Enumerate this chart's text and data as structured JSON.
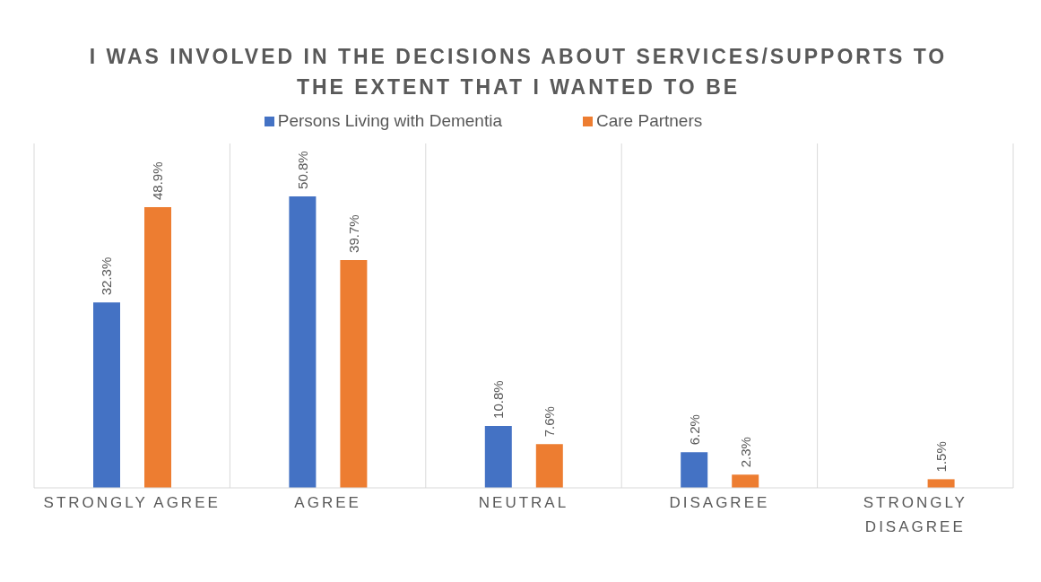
{
  "chart_data": {
    "type": "bar",
    "title": "I WAS INVOLVED IN THE DECISIONS ABOUT SERVICES/SUPPORTS TO THE EXTENT THAT I WANTED TO BE",
    "categories": [
      "STRONGLY AGREE",
      "AGREE",
      "NEUTRAL",
      "DISAGREE",
      "STRONGLY DISAGREE"
    ],
    "series": [
      {
        "name": "Persons Living with Dementia",
        "color": "#4472c4",
        "values": [
          32.3,
          50.8,
          10.8,
          6.2,
          null
        ],
        "value_labels": [
          "32.3%",
          "50.8%",
          "10.8%",
          "6.2%",
          null
        ]
      },
      {
        "name": "Care Partners",
        "color": "#ed7d31",
        "values": [
          48.9,
          39.7,
          7.6,
          2.3,
          1.5
        ],
        "value_labels": [
          "48.9%",
          "39.7%",
          "7.6%",
          "2.3%",
          "1.5%"
        ]
      }
    ],
    "grid": "x",
    "legend": "top"
  }
}
